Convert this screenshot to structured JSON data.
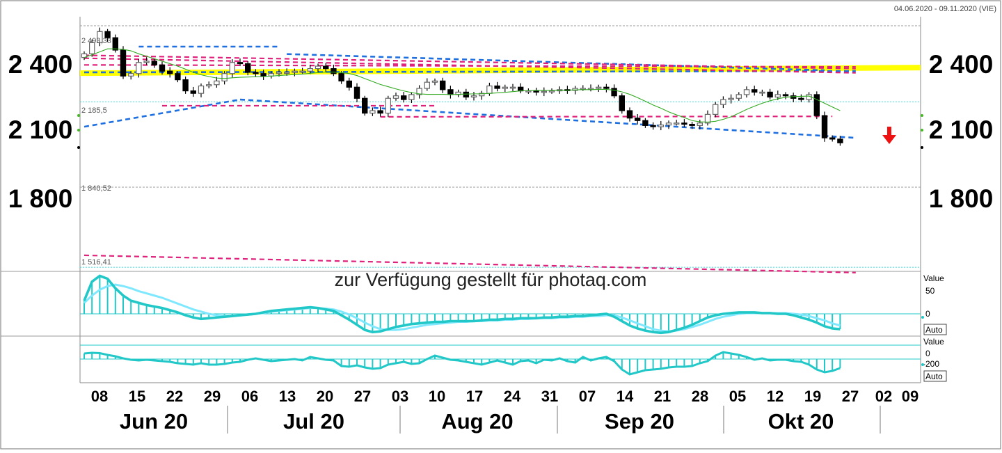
{
  "date_range": "04.06.2020 - 09.11.2020 (VIE)",
  "watermark": "zur Verfügung gestellt für photaq.com",
  "y_axis_labels": [
    "2 400",
    "2 100",
    "1 800"
  ],
  "reference_lines": [
    {
      "label": "2 493,33",
      "value": 2493.33
    },
    {
      "label": "2 185,5",
      "value": 2185.5
    },
    {
      "label": "1 840,52",
      "value": 1840.52
    },
    {
      "label": "1 516,41",
      "value": 1516.41
    }
  ],
  "x_ticks": [
    "08",
    "15",
    "22",
    "29",
    "06",
    "13",
    "20",
    "27",
    "03",
    "10",
    "17",
    "24",
    "31",
    "07",
    "14",
    "21",
    "28",
    "05",
    "12",
    "19",
    "27",
    "02",
    "09"
  ],
  "months": [
    "Jun 20",
    "Jul 20",
    "Aug 20",
    "Sep 20",
    "Okt 20"
  ],
  "macd_panel": {
    "label": "Value",
    "zero_label": "0",
    "scale_label": "50",
    "button": "Auto"
  },
  "momentum_panel": {
    "label": "Value",
    "zero_label": "0",
    "scale_label": "-200",
    "button": "Auto"
  },
  "colors": {
    "trend_blue": "#1e6fe0",
    "resistance_magenta": "#e0207a",
    "support_yellow": "#ffff00",
    "indicator_cyan": "#22c8c8",
    "sma_green": "#33aa22",
    "signal_red": "#ee1111"
  },
  "chart_data": {
    "type": "candlestick",
    "ylim": [
      1500,
      2530
    ],
    "close": [
      2380,
      2425,
      2470,
      2445,
      2395,
      2290,
      2300,
      2345,
      2350,
      2335,
      2310,
      2300,
      2275,
      2230,
      2220,
      2250,
      2255,
      2270,
      2300,
      2345,
      2340,
      2305,
      2300,
      2290,
      2300,
      2305,
      2305,
      2310,
      2310,
      2320,
      2330,
      2320,
      2300,
      2270,
      2245,
      2200,
      2140,
      2150,
      2140,
      2200,
      2210,
      2195,
      2215,
      2240,
      2265,
      2270,
      2235,
      2215,
      2225,
      2205,
      2210,
      2220,
      2250,
      2240,
      2245,
      2245,
      2230,
      2230,
      2225,
      2228,
      2230,
      2235,
      2232,
      2240,
      2240,
      2240,
      2245,
      2240,
      2210,
      2150,
      2120,
      2110,
      2090,
      2085,
      2092,
      2100,
      2100,
      2095,
      2090,
      2100,
      2135,
      2175,
      2195,
      2200,
      2215,
      2235,
      2225,
      2225,
      2205,
      2215,
      2210,
      2200,
      2195,
      2215,
      2130,
      2040,
      2035,
      2020
    ],
    "sma": [
      2365,
      2376,
      2388,
      2400,
      2400,
      2398,
      2392,
      2380,
      2370,
      2360,
      2350,
      2340,
      2330,
      2318,
      2305,
      2295,
      2288,
      2282,
      2280,
      2283,
      2285,
      2286,
      2287,
      2288,
      2290,
      2292,
      2294,
      2296,
      2298,
      2301,
      2304,
      2306,
      2306,
      2304,
      2300,
      2292,
      2280,
      2268,
      2256,
      2247,
      2238,
      2230,
      2223,
      2218,
      2216,
      2216,
      2216,
      2215,
      2216,
      2217,
      2218,
      2218,
      2220,
      2222,
      2224,
      2227,
      2230,
      2231,
      2232,
      2232,
      2232,
      2233,
      2233,
      2234,
      2235,
      2235,
      2236,
      2236,
      2233,
      2226,
      2216,
      2203,
      2188,
      2173,
      2160,
      2145,
      2133,
      2122,
      2110,
      2105,
      2104,
      2107,
      2115,
      2125,
      2140,
      2155,
      2168,
      2180,
      2190,
      2198,
      2204,
      2207,
      2208,
      2209,
      2195,
      2180,
      2165,
      2150
    ],
    "macd": [
      18,
      44,
      52,
      48,
      35,
      25,
      18,
      15,
      12,
      10,
      8,
      5,
      2,
      -2,
      -5,
      -7,
      -6,
      -5,
      -4,
      -3,
      -2,
      -1,
      0,
      2,
      4,
      5,
      6,
      7,
      8,
      9,
      8,
      6,
      4,
      -2,
      -8,
      -15,
      -22,
      -25,
      -24,
      -21,
      -18,
      -16,
      -14,
      -13,
      -12,
      -11,
      -11,
      -10,
      -10,
      -10,
      -10,
      -9,
      -8,
      -8,
      -7,
      -7,
      -6,
      -6,
      -6,
      -5,
      -5,
      -4,
      -4,
      -3,
      -3,
      -2,
      -1,
      0,
      -4,
      -10,
      -16,
      -20,
      -23,
      -25,
      -26,
      -25,
      -22,
      -19,
      -15,
      -10,
      -5,
      -2,
      0,
      1,
      2,
      2,
      2,
      1,
      1,
      0,
      0,
      -2,
      -5,
      -8,
      -12,
      -17,
      -20,
      -21
    ],
    "macd_signal": [
      15,
      25,
      33,
      38,
      40,
      38,
      35,
      31,
      28,
      25,
      22,
      18,
      14,
      10,
      6,
      3,
      0,
      -2,
      -3,
      -3,
      -2,
      -1,
      0,
      1,
      3,
      4,
      5,
      6,
      7,
      8,
      8,
      7,
      6,
      3,
      -1,
      -6,
      -12,
      -17,
      -21,
      -22,
      -22,
      -21,
      -19,
      -17,
      -15,
      -14,
      -13,
      -12,
      -11,
      -11,
      -10,
      -10,
      -9,
      -9,
      -8,
      -8,
      -7,
      -7,
      -6,
      -6,
      -6,
      -5,
      -5,
      -4,
      -4,
      -3,
      -3,
      -2,
      -2,
      -5,
      -9,
      -13,
      -17,
      -21,
      -23,
      -24,
      -23,
      -21,
      -18,
      -15,
      -11,
      -7,
      -4,
      -2,
      0,
      1,
      1,
      1,
      1,
      1,
      1,
      0,
      -1,
      -3,
      -6,
      -9,
      -13,
      -16
    ],
    "momentum": [
      80,
      90,
      85,
      60,
      40,
      10,
      -10,
      -20,
      -10,
      -20,
      -30,
      -40,
      -60,
      -70,
      -80,
      -60,
      -80,
      -80,
      -70,
      -50,
      -40,
      -10,
      10,
      -10,
      -30,
      -20,
      -10,
      0,
      -20,
      30,
      10,
      -10,
      -20,
      -100,
      -110,
      -90,
      -120,
      -140,
      -130,
      -80,
      -60,
      -40,
      -70,
      -60,
      0,
      50,
      20,
      -10,
      -20,
      -40,
      -60,
      -80,
      -50,
      -20,
      -50,
      -80,
      -30,
      -20,
      -60,
      -10,
      -20,
      10,
      -30,
      -50,
      30,
      -20,
      10,
      30,
      -30,
      -150,
      -220,
      -190,
      -160,
      -150,
      -140,
      -120,
      -110,
      -110,
      -100,
      -60,
      -30,
      50,
      100,
      80,
      60,
      30,
      -10,
      10,
      -20,
      -10,
      -10,
      -30,
      -40,
      -80,
      -150,
      -190,
      -170,
      -130
    ],
    "horizontal_support": 2310,
    "trendlines": [
      {
        "color": "blue",
        "from": {
          "i": 0,
          "value": 2085
        },
        "to": {
          "i": 20,
          "value": 2195
        }
      },
      {
        "color": "blue",
        "from": {
          "i": 20,
          "value": 2195
        },
        "to": {
          "i": 99,
          "value": 2040
        }
      },
      {
        "color": "blue",
        "from": {
          "i": 0,
          "value": 2305
        },
        "to": {
          "i": 99,
          "value": 2310
        }
      },
      {
        "color": "blue",
        "from": {
          "i": 7,
          "value": 2409
        },
        "to": {
          "i": 25,
          "value": 2409
        }
      },
      {
        "color": "blue",
        "from": {
          "i": 26,
          "value": 2379
        },
        "to": {
          "i": 95,
          "value": 2313
        }
      },
      {
        "color": "magenta",
        "from": {
          "i": 0,
          "value": 2374
        },
        "to": {
          "i": 99,
          "value": 2320
        }
      },
      {
        "color": "magenta",
        "from": {
          "i": 0,
          "value": 2362
        },
        "to": {
          "i": 99,
          "value": 2303
        }
      },
      {
        "color": "magenta",
        "from": {
          "i": 0,
          "value": 2335
        },
        "to": {
          "i": 99,
          "value": 2327
        }
      },
      {
        "color": "magenta",
        "from": {
          "i": 10,
          "value": 2170
        },
        "to": {
          "i": 45,
          "value": 2170
        }
      },
      {
        "color": "magenta",
        "from": {
          "i": 38,
          "value": 2125
        },
        "to": {
          "i": 96,
          "value": 2127
        }
      },
      {
        "color": "magenta",
        "from": {
          "i": 0,
          "value": 1565
        },
        "to": {
          "i": 99,
          "value": 1495
        }
      }
    ]
  }
}
